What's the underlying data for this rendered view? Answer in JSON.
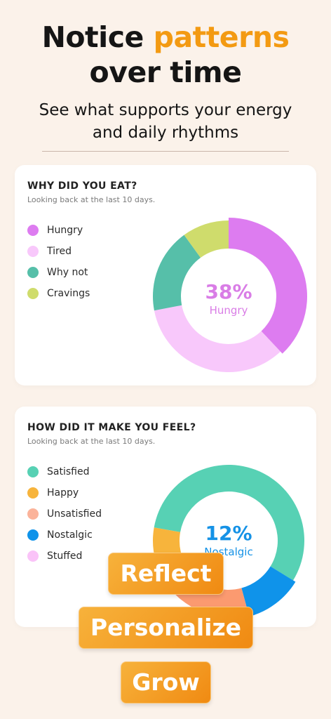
{
  "hero": {
    "title_pre": "Notice ",
    "title_accent": "patterns",
    "title_post": "over time",
    "subtitle_line1": "See what supports your energy",
    "subtitle_line2": "and daily rhythms"
  },
  "cards": [
    {
      "title": "WHY DID YOU EAT?",
      "subtitle": "Looking back at the last 10 days.",
      "center_value": "38%",
      "center_label": "Hungry",
      "center_color": "#d97de6",
      "legend": [
        {
          "label": "Hungry",
          "color": "#dd7cf0"
        },
        {
          "label": "Tired",
          "color": "#f8c8fb"
        },
        {
          "label": "Why not",
          "color": "#56bfa9"
        },
        {
          "label": "Cravings",
          "color": "#cfdc6c"
        }
      ]
    },
    {
      "title": "HOW DID IT MAKE YOU FEEL?",
      "subtitle": "Looking back at the last 10 days.",
      "center_value": "12%",
      "center_label": "Nostalgic",
      "center_color": "#1592e6",
      "legend": [
        {
          "label": "Satisfied",
          "color": "#57d1b4"
        },
        {
          "label": "Happy",
          "color": "#f7b43c"
        },
        {
          "label": "Unsatisfied",
          "color": "#fbb39a"
        },
        {
          "label": "Nostalgic",
          "color": "#0f93ea"
        },
        {
          "label": "Stuffed",
          "color": "#fac3f8"
        }
      ]
    }
  ],
  "chart_data": [
    {
      "type": "pie",
      "title": "WHY DID YOU EAT?",
      "categories": [
        "Hungry",
        "Tired",
        "Why not",
        "Cravings"
      ],
      "values": [
        38,
        34,
        18,
        10
      ],
      "colors": [
        "#dd7cf0",
        "#f8c8fb",
        "#56bfa9",
        "#cfdc6c"
      ]
    },
    {
      "type": "pie",
      "title": "HOW DID IT MAKE YOU FEEL?",
      "categories": [
        "Satisfied",
        "Nostalgic",
        "Unsatisfied",
        "Stuffed",
        "Happy"
      ],
      "values": [
        56,
        12,
        20,
        2,
        10
      ],
      "colors": [
        "#57d1b4",
        "#0f93ea",
        "#fb9a70",
        "#fac3f8",
        "#f7b43c"
      ]
    }
  ],
  "pills": [
    "Reflect",
    "Personalize",
    "Grow"
  ]
}
